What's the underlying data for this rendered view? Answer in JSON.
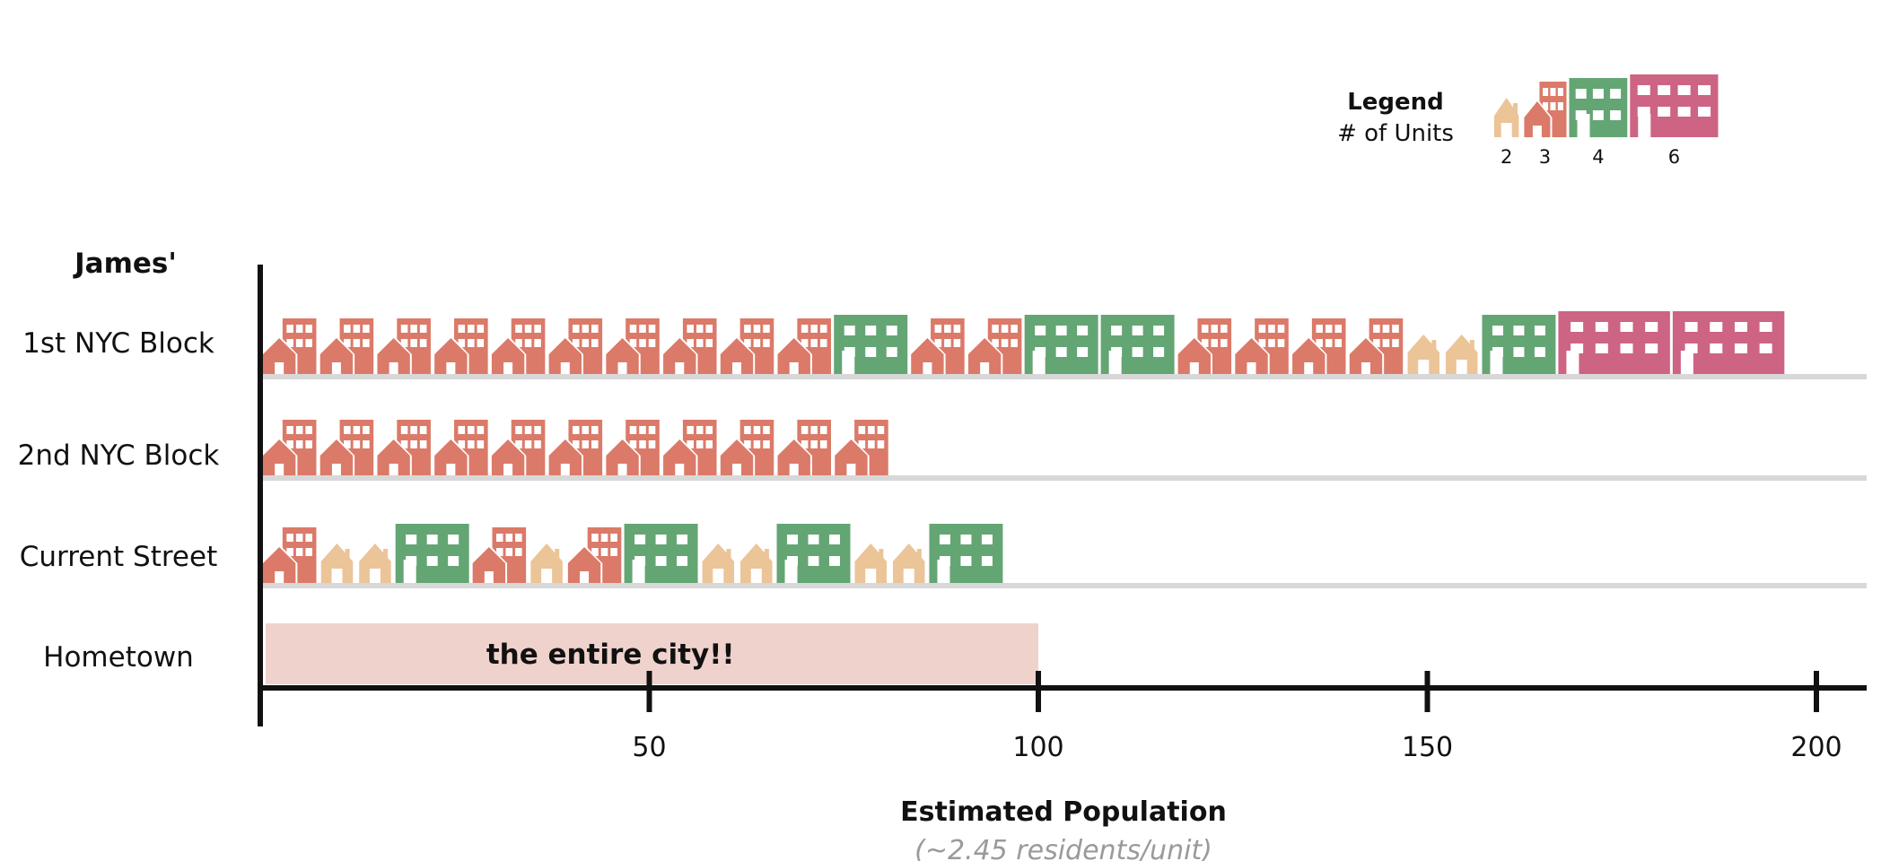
{
  "chart_data": {
    "type": "bar",
    "title": "",
    "row_header": "James'",
    "xlabel": "Estimated Population",
    "xlabel_note": "(~2.45 residents/unit)",
    "xlim": [
      0,
      207
    ],
    "xticks": [
      50,
      100,
      150,
      200
    ],
    "residents_per_unit": 2.45,
    "legend": {
      "title": "Legend",
      "subtitle": "# of Units",
      "items": [
        {
          "units": 2,
          "label": "2",
          "color": "#EBC498"
        },
        {
          "units": 3,
          "label": "3",
          "color": "#DB7A69"
        },
        {
          "units": 4,
          "label": "4",
          "color": "#64A574"
        },
        {
          "units": 6,
          "label": "6",
          "color": "#CD6483"
        }
      ]
    },
    "categories": [
      "1st NYC Block",
      "2nd NYC Block",
      "Current Street",
      "Hometown"
    ],
    "rows": [
      {
        "label": "1st NYC Block",
        "buildings": [
          3,
          3,
          3,
          3,
          3,
          3,
          3,
          3,
          3,
          3,
          4,
          3,
          3,
          4,
          4,
          3,
          3,
          3,
          3,
          2,
          2,
          4,
          6,
          6
        ],
        "population": 200
      },
      {
        "label": "2nd NYC Block",
        "buildings": [
          3,
          3,
          3,
          3,
          3,
          3,
          3,
          3,
          3,
          3,
          3
        ],
        "population": 81
      },
      {
        "label": "Current Street",
        "buildings": [
          3,
          2,
          2,
          4,
          3,
          2,
          3,
          4,
          2,
          2,
          4,
          2,
          2,
          4
        ],
        "population": 98
      },
      {
        "label": "Hometown",
        "bar_value": 100,
        "bar_color": "#F0D2CC",
        "annotation": "the entire city!!"
      }
    ],
    "colors": {
      "axis": "#111111",
      "baseline": "#D8D8D8"
    }
  }
}
